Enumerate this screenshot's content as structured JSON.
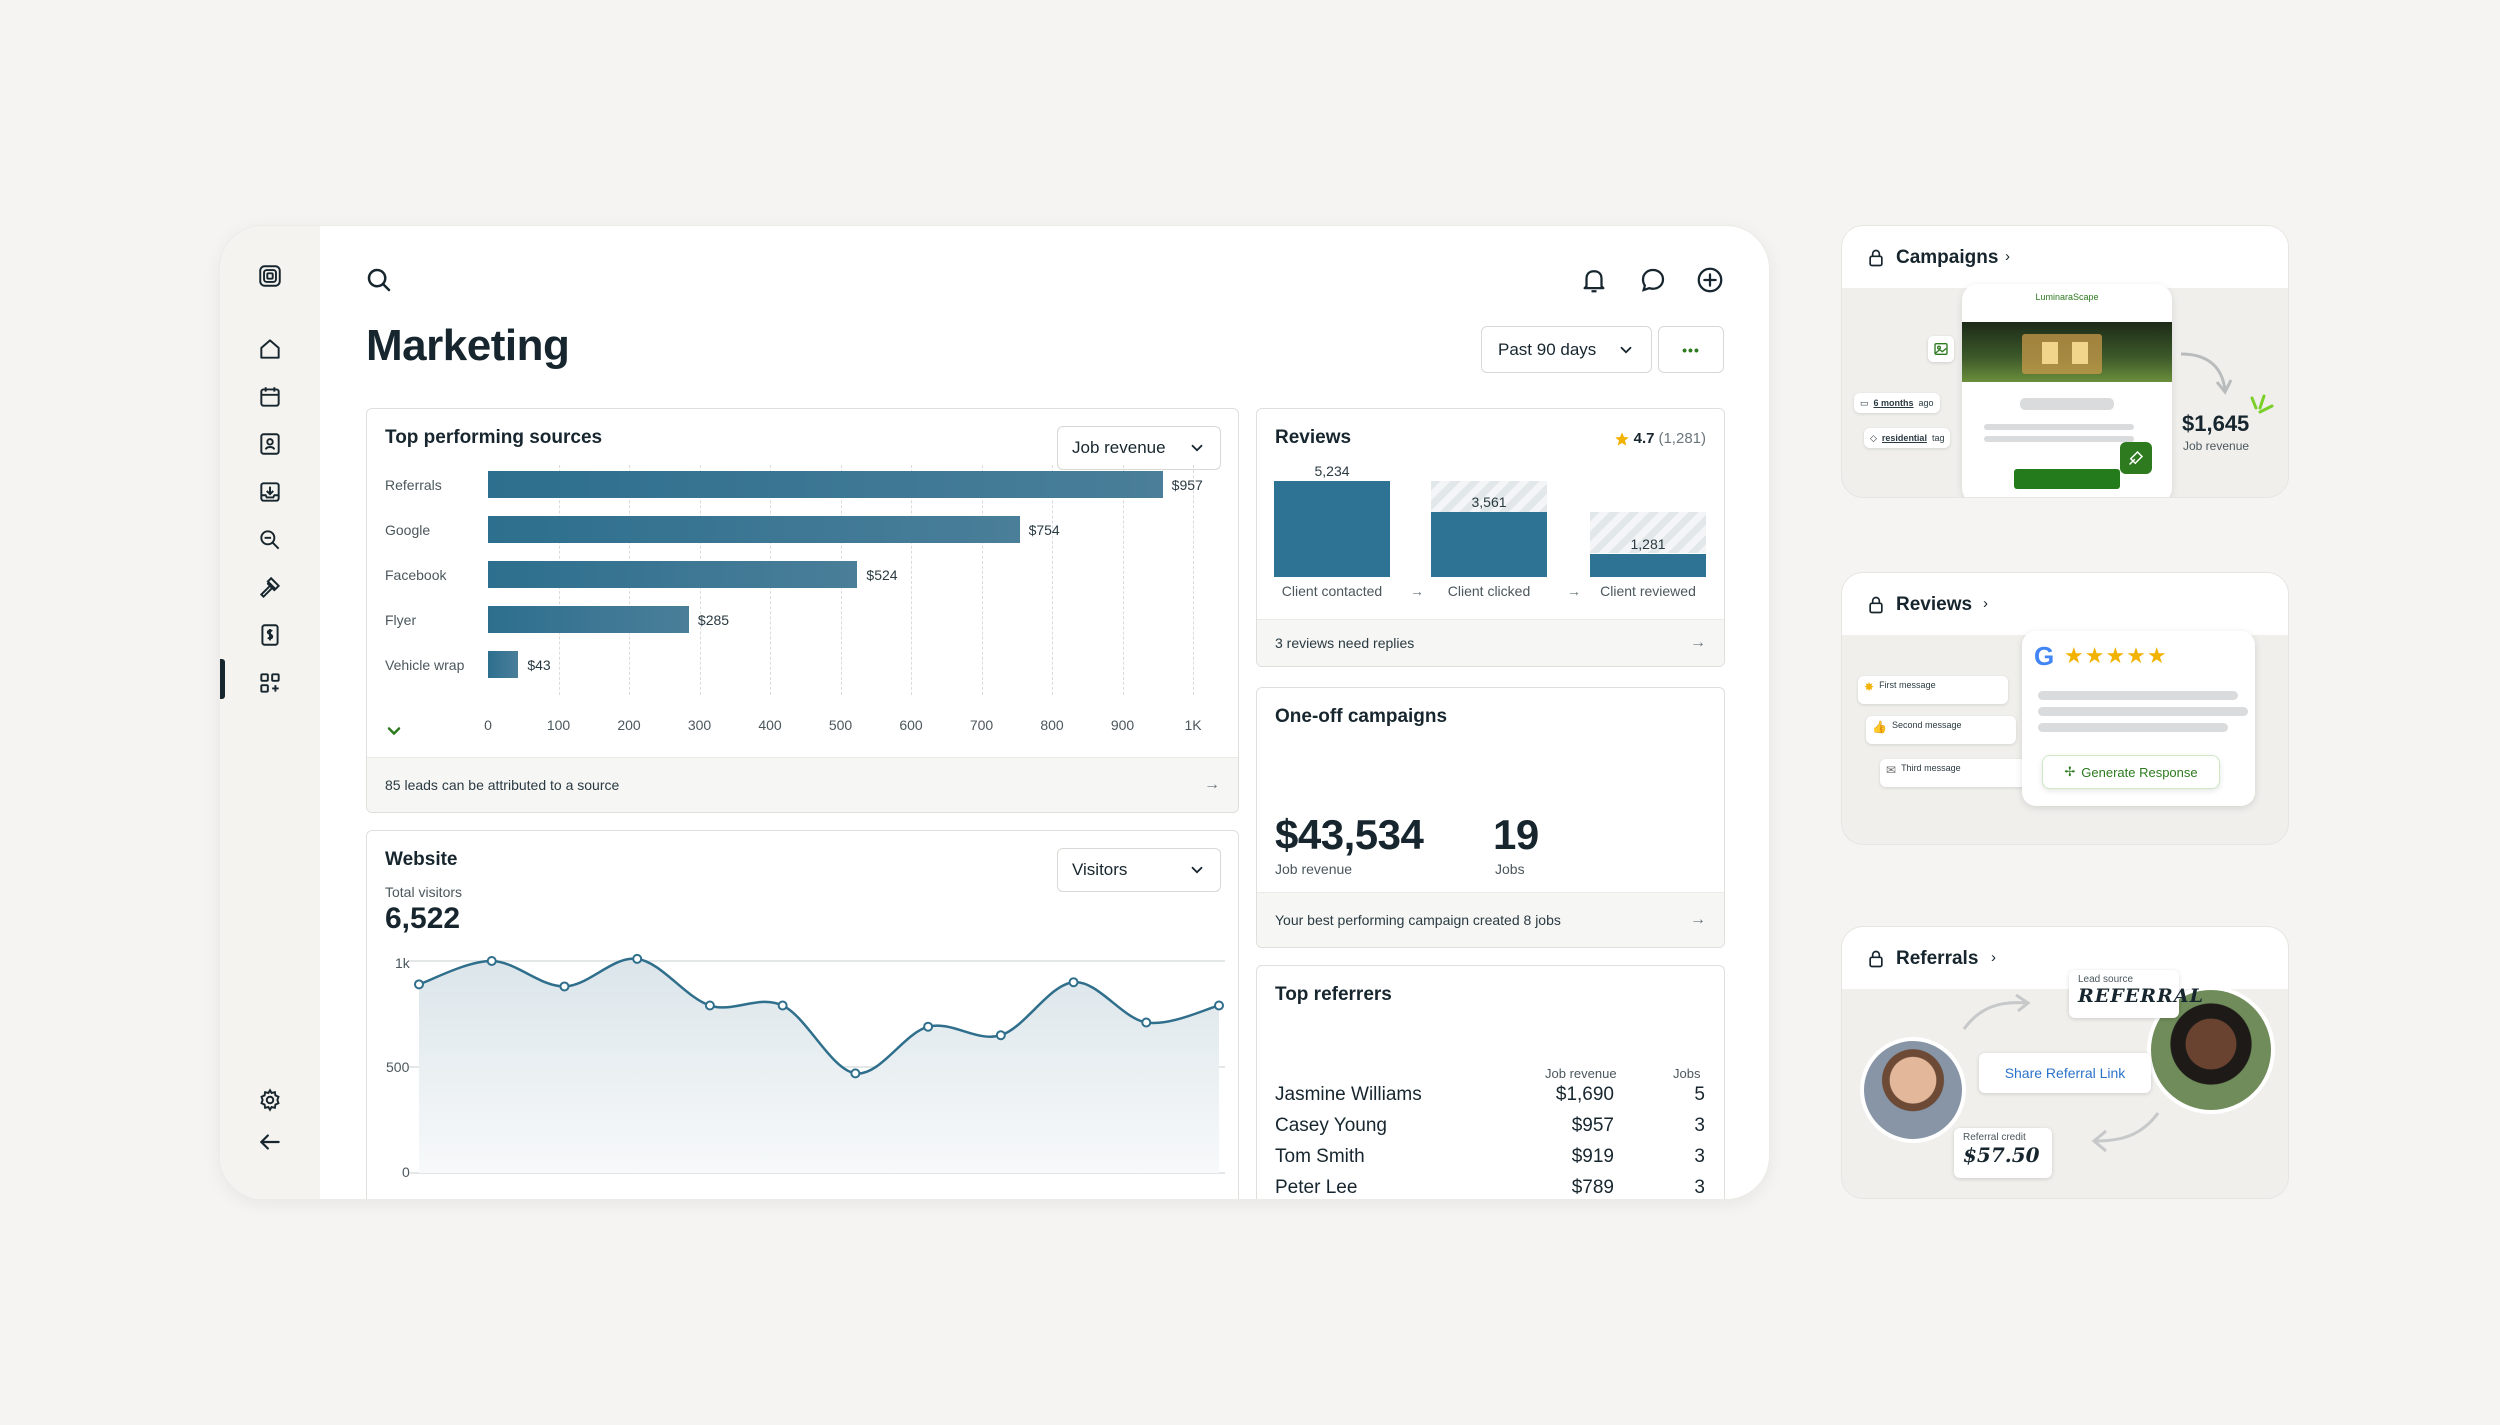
{
  "page": {
    "title": "Marketing"
  },
  "header": {
    "date_range": "Past 90 days",
    "more_label": "•••"
  },
  "top_sources": {
    "title": "Top performing sources",
    "metric_select": "Job revenue",
    "footer": "85 leads can be attributed to a source",
    "expand_icon": "chevron-down-icon"
  },
  "website": {
    "title": "Website",
    "metric_select": "Visitors",
    "total_label": "Total visitors",
    "total_value": "6,522",
    "y_ticks": [
      "1k",
      "500",
      "0"
    ]
  },
  "reviews": {
    "title": "Reviews",
    "rating": "4.7",
    "rating_count": "(1,281)",
    "footer": "3 reviews need replies"
  },
  "one_off": {
    "title": "One-off campaigns",
    "revenue": "$43,534",
    "revenue_label": "Job revenue",
    "jobs": "19",
    "jobs_label": "Jobs",
    "footer": "Your best performing campaign created 8 jobs"
  },
  "top_referrers": {
    "title": "Top referrers",
    "col_revenue": "Job revenue",
    "col_jobs": "Jobs",
    "rows": [
      {
        "name": "Jasmine Williams",
        "revenue": "$1,690",
        "jobs": "5"
      },
      {
        "name": "Casey Young",
        "revenue": "$957",
        "jobs": "3"
      },
      {
        "name": "Tom Smith",
        "revenue": "$919",
        "jobs": "3"
      },
      {
        "name": "Peter Lee",
        "revenue": "$789",
        "jobs": "3"
      }
    ]
  },
  "promo_campaigns": {
    "title": "Campaigns",
    "brand": "LuminaraScape",
    "ago": "6 months",
    "ago_suffix": "ago",
    "tag": "residential",
    "tag_suffix": "tag",
    "amount": "$1,645",
    "amount_label": "Job revenue"
  },
  "promo_reviews": {
    "title": "Reviews",
    "messages": [
      "First message",
      "Second message",
      "Third message"
    ],
    "generate_label": "Generate Response"
  },
  "promo_referrals": {
    "title": "Referrals",
    "lead_source_label": "Lead source",
    "lead_source_value": "REFERRAL",
    "share_label": "Share Referral Link",
    "credit_label": "Referral credit",
    "credit_value": "$57.50"
  },
  "colors": {
    "bar": "#2f7394",
    "accent_green": "#2d7a1f",
    "star": "#f2b200",
    "text": "#17262e"
  },
  "chart_data": [
    {
      "type": "bar",
      "orientation": "horizontal",
      "title": "Top performing sources",
      "categories": [
        "Referrals",
        "Google",
        "Facebook",
        "Flyer",
        "Vehicle wrap"
      ],
      "values": [
        957,
        754,
        524,
        285,
        43
      ],
      "value_labels": [
        "$957",
        "$754",
        "$524",
        "$285",
        "$43"
      ],
      "x_ticks": [
        "0",
        "100",
        "200",
        "300",
        "400",
        "500",
        "600",
        "700",
        "800",
        "900",
        "1K"
      ],
      "xlim": [
        0,
        1000
      ]
    },
    {
      "type": "bar",
      "title": "Reviews",
      "categories": [
        "Client contacted",
        "Client clicked",
        "Client reviewed"
      ],
      "values": [
        5234,
        3561,
        1281
      ],
      "value_labels": [
        "5,234",
        "3,561",
        "1,281"
      ]
    },
    {
      "type": "area",
      "title": "Website",
      "ylabel": "Visitors",
      "ylim": [
        0,
        1000
      ],
      "y_ticks": [
        0,
        500,
        1000
      ],
      "values": [
        890,
        1000,
        880,
        1010,
        790,
        790,
        470,
        690,
        650,
        900,
        710,
        790
      ]
    }
  ]
}
